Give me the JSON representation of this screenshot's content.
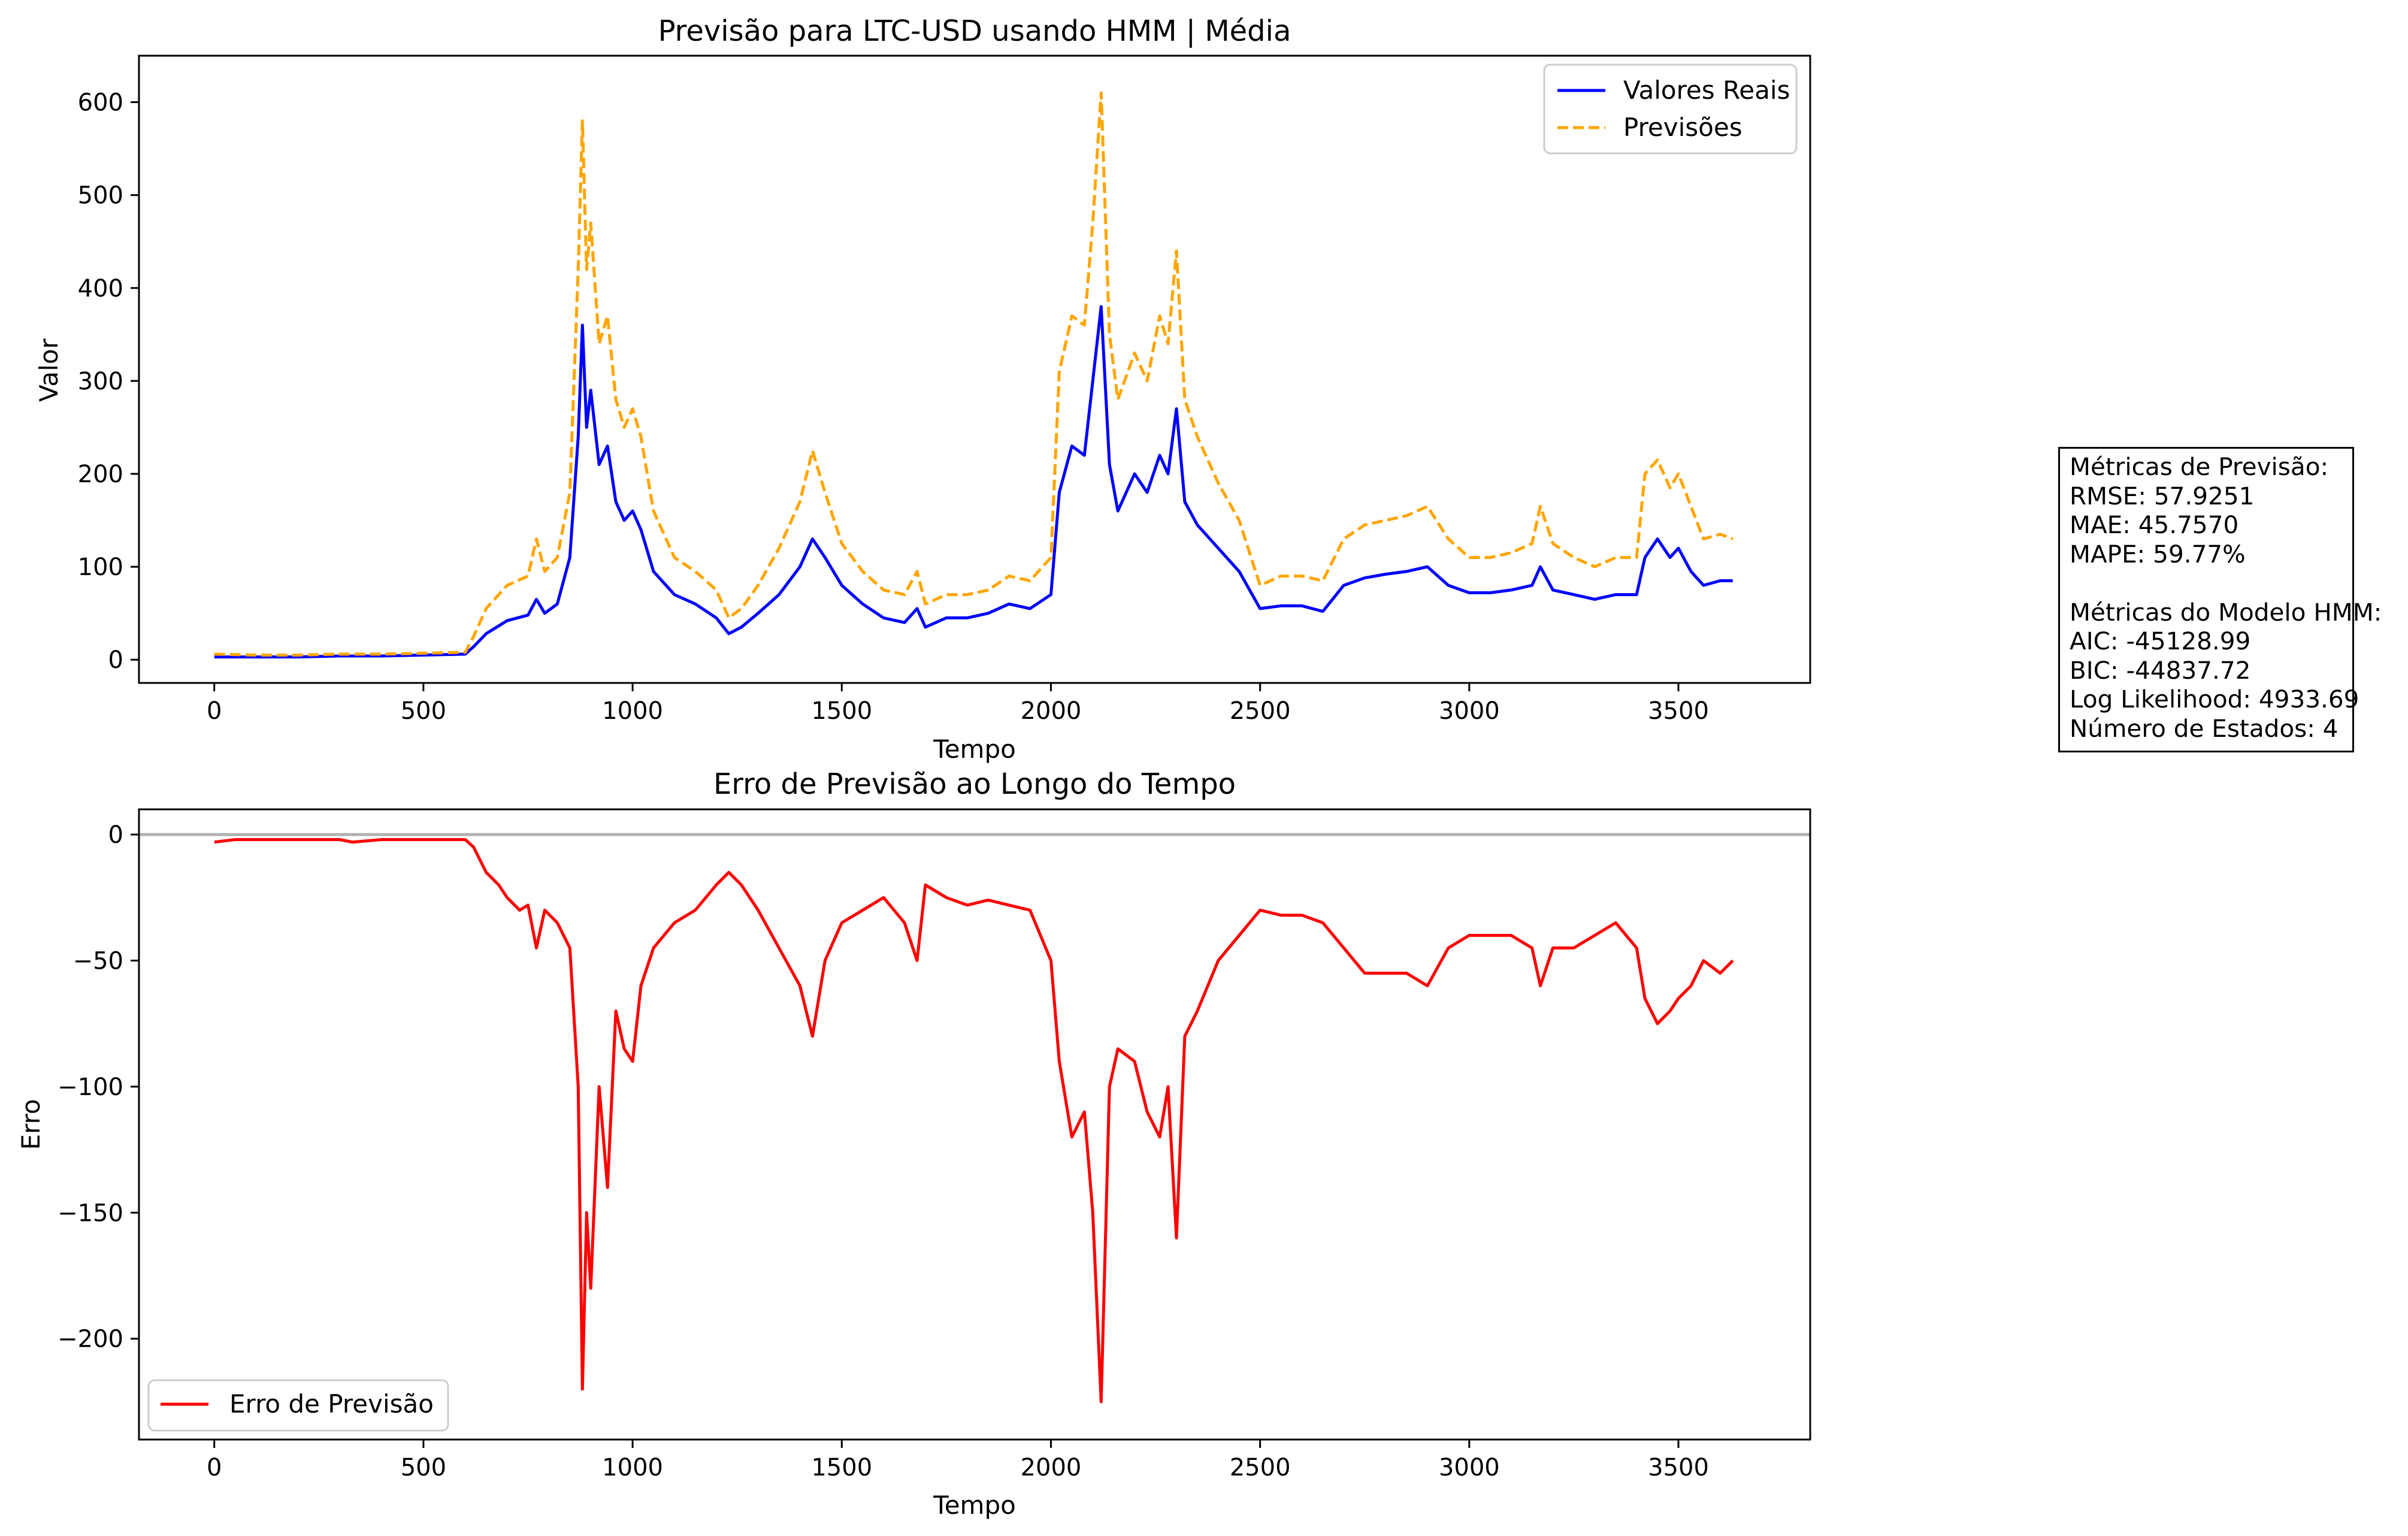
{
  "chart_data": [
    {
      "type": "line",
      "title": "Previsão para LTC-USD usando HMM | Média",
      "xlabel": "Tempo",
      "ylabel": "Valor",
      "xlim": [
        -180,
        3815
      ],
      "ylim": [
        -25,
        650
      ],
      "xticks": [
        0,
        500,
        1000,
        1500,
        2000,
        2500,
        3000,
        3500
      ],
      "xtick_labels": [
        "0",
        "500",
        "1000",
        "1500",
        "2000",
        "2500",
        "3000",
        "3500"
      ],
      "yticks": [
        0,
        100,
        200,
        300,
        400,
        500,
        600
      ],
      "ytick_labels": [
        "0",
        "100",
        "200",
        "300",
        "400",
        "500",
        "600"
      ],
      "grid": false,
      "legend": "top-right",
      "series": [
        {
          "name": "Valores Reais",
          "color": "#0000ff",
          "style": "solid",
          "x": [
            0,
            100,
            200,
            300,
            400,
            500,
            600,
            620,
            650,
            700,
            750,
            770,
            790,
            820,
            850,
            870,
            880,
            890,
            900,
            920,
            940,
            960,
            980,
            1000,
            1020,
            1050,
            1100,
            1150,
            1200,
            1230,
            1260,
            1300,
            1350,
            1400,
            1430,
            1460,
            1500,
            1550,
            1600,
            1650,
            1680,
            1700,
            1750,
            1800,
            1850,
            1900,
            1950,
            2000,
            2020,
            2050,
            2080,
            2100,
            2120,
            2140,
            2160,
            2200,
            2230,
            2260,
            2280,
            2300,
            2320,
            2350,
            2400,
            2450,
            2500,
            2550,
            2600,
            2650,
            2700,
            2750,
            2800,
            2850,
            2900,
            2950,
            3000,
            3050,
            3100,
            3150,
            3170,
            3200,
            3250,
            3300,
            3350,
            3400,
            3420,
            3450,
            3480,
            3500,
            3530,
            3560,
            3600,
            3630
          ],
          "y": [
            3,
            3,
            3,
            4,
            4,
            5,
            6,
            14,
            28,
            42,
            48,
            65,
            50,
            60,
            110,
            240,
            360,
            250,
            290,
            210,
            230,
            170,
            150,
            160,
            140,
            95,
            70,
            60,
            45,
            28,
            35,
            50,
            70,
            100,
            130,
            110,
            80,
            60,
            45,
            40,
            55,
            35,
            45,
            45,
            50,
            60,
            55,
            70,
            180,
            230,
            220,
            300,
            380,
            210,
            160,
            200,
            180,
            220,
            200,
            270,
            170,
            145,
            120,
            95,
            55,
            58,
            58,
            52,
            80,
            88,
            92,
            95,
            100,
            80,
            72,
            72,
            75,
            80,
            100,
            75,
            70,
            65,
            70,
            70,
            110,
            130,
            110,
            120,
            95,
            80,
            85,
            85
          ],
          "note": "approximate trace read from the chart"
        },
        {
          "name": "Previsões",
          "color": "#ffa500",
          "style": "dashed",
          "x": [
            0,
            100,
            200,
            300,
            400,
            500,
            600,
            620,
            650,
            700,
            750,
            770,
            790,
            820,
            850,
            870,
            880,
            890,
            900,
            920,
            940,
            960,
            980,
            1000,
            1020,
            1050,
            1100,
            1150,
            1200,
            1230,
            1260,
            1300,
            1350,
            1400,
            1430,
            1460,
            1500,
            1550,
            1600,
            1650,
            1680,
            1700,
            1750,
            1800,
            1850,
            1900,
            1950,
            2000,
            2020,
            2050,
            2080,
            2100,
            2120,
            2140,
            2160,
            2200,
            2230,
            2260,
            2280,
            2300,
            2320,
            2350,
            2400,
            2450,
            2500,
            2550,
            2600,
            2650,
            2700,
            2750,
            2800,
            2850,
            2900,
            2950,
            3000,
            3050,
            3100,
            3150,
            3170,
            3200,
            3250,
            3300,
            3350,
            3400,
            3420,
            3450,
            3480,
            3500,
            3530,
            3560,
            3600,
            3630
          ],
          "y": [
            6,
            5,
            5,
            6,
            6,
            7,
            8,
            25,
            55,
            80,
            90,
            130,
            95,
            110,
            180,
            420,
            580,
            420,
            470,
            340,
            370,
            280,
            250,
            270,
            240,
            160,
            110,
            95,
            75,
            45,
            55,
            80,
            120,
            170,
            225,
            180,
            125,
            95,
            75,
            70,
            95,
            60,
            70,
            70,
            75,
            90,
            85,
            110,
            310,
            370,
            360,
            470,
            610,
            350,
            280,
            330,
            300,
            370,
            340,
            440,
            280,
            240,
            190,
            150,
            80,
            90,
            90,
            85,
            130,
            145,
            150,
            155,
            165,
            130,
            110,
            110,
            115,
            125,
            165,
            125,
            110,
            100,
            110,
            110,
            200,
            215,
            185,
            200,
            165,
            130,
            135,
            130
          ],
          "note": "approximate trace read from the chart"
        }
      ]
    },
    {
      "type": "line",
      "title": "Erro de Previsão ao Longo do Tempo",
      "xlabel": "Tempo",
      "ylabel": "Erro",
      "xlim": [
        -180,
        3815
      ],
      "ylim": [
        -240,
        10
      ],
      "xticks": [
        0,
        500,
        1000,
        1500,
        2000,
        2500,
        3000,
        3500
      ],
      "xtick_labels": [
        "0",
        "500",
        "1000",
        "1500",
        "2000",
        "2500",
        "3000",
        "3500"
      ],
      "yticks": [
        0,
        -50,
        -100,
        -150,
        -200
      ],
      "ytick_labels": [
        "0",
        "−50",
        "−100",
        "−150",
        "−200"
      ],
      "grid": false,
      "legend": "bottom-left",
      "reference_line": {
        "y": 0,
        "color": "#b0b0b0"
      },
      "series": [
        {
          "name": "Erro de Previsão",
          "color": "#ff0000",
          "style": "solid",
          "x": [
            0,
            50,
            100,
            200,
            300,
            330,
            400,
            500,
            600,
            620,
            650,
            680,
            700,
            730,
            750,
            770,
            790,
            820,
            850,
            870,
            880,
            890,
            900,
            920,
            940,
            960,
            980,
            1000,
            1020,
            1050,
            1100,
            1150,
            1200,
            1230,
            1260,
            1300,
            1350,
            1400,
            1430,
            1460,
            1500,
            1550,
            1600,
            1650,
            1680,
            1700,
            1750,
            1800,
            1850,
            1900,
            1950,
            2000,
            2020,
            2050,
            2080,
            2100,
            2120,
            2140,
            2160,
            2200,
            2230,
            2260,
            2280,
            2300,
            2320,
            2350,
            2400,
            2450,
            2500,
            2550,
            2600,
            2650,
            2700,
            2750,
            2800,
            2850,
            2900,
            2950,
            3000,
            3050,
            3100,
            3150,
            3170,
            3200,
            3250,
            3300,
            3350,
            3400,
            3420,
            3450,
            3480,
            3500,
            3530,
            3560,
            3600,
            3630
          ],
          "y": [
            -3,
            -2,
            -2,
            -2,
            -2,
            -3,
            -2,
            -2,
            -2,
            -5,
            -15,
            -20,
            -25,
            -30,
            -28,
            -45,
            -30,
            -35,
            -45,
            -100,
            -220,
            -150,
            -180,
            -100,
            -140,
            -70,
            -85,
            -90,
            -60,
            -45,
            -35,
            -30,
            -20,
            -15,
            -20,
            -30,
            -45,
            -60,
            -80,
            -50,
            -35,
            -30,
            -25,
            -35,
            -50,
            -20,
            -25,
            -28,
            -26,
            -28,
            -30,
            -50,
            -90,
            -120,
            -110,
            -150,
            -225,
            -100,
            -85,
            -90,
            -110,
            -120,
            -100,
            -160,
            -80,
            -70,
            -50,
            -40,
            -30,
            -32,
            -32,
            -35,
            -45,
            -55,
            -55,
            -55,
            -60,
            -45,
            -40,
            -40,
            -40,
            -45,
            -60,
            -45,
            -45,
            -40,
            -35,
            -45,
            -65,
            -75,
            -70,
            -65,
            -60,
            -50,
            -55,
            -50
          ],
          "note": "approximate trace read from the chart"
        }
      ]
    }
  ],
  "metrics_box": {
    "lines": [
      "Métricas de Previsão:",
      "RMSE: 57.9251",
      "MAE: 45.7570",
      "MAPE: 59.77%",
      "",
      "Métricas do Modelo HMM:",
      "AIC: -45128.99",
      "BIC: -44837.72",
      "Log Likelihood: 4933.69",
      "Número de Estados: 4"
    ]
  }
}
